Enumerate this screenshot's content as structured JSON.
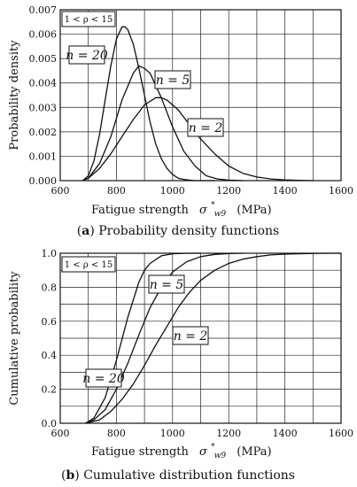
{
  "chart_data": [
    {
      "type": "line",
      "caption_letter": "a",
      "caption_text": " Probability density functions",
      "xlabel": "Fatigue strength",
      "xlabel_symbol": "σ",
      "xlabel_sub": "w9",
      "xlabel_sup": "*",
      "xlabel_unit": "(MPa)",
      "ylabel": "Probability density",
      "xlim": [
        600,
        1600
      ],
      "ylim": [
        0,
        0.007
      ],
      "xticks": [
        "600",
        "800",
        "1000",
        "1200",
        "1400",
        "1600"
      ],
      "yticks": [
        "0.000",
        "0.001",
        "0.002",
        "0.003",
        "0.004",
        "0.005",
        "0.006",
        "0.007"
      ],
      "grid": true,
      "range_note": "1 < ρ < 15",
      "series": [
        {
          "name": "n = 20",
          "x": [
            680,
            700,
            720,
            740,
            760,
            780,
            800,
            820,
            830,
            840,
            860,
            880,
            900,
            920,
            940,
            960,
            980,
            1000,
            1020,
            1040,
            1060,
            1080,
            1100,
            1150
          ],
          "y": [
            0.0,
            0.0002,
            0.0008,
            0.0019,
            0.0033,
            0.0047,
            0.0058,
            0.0063,
            0.0063,
            0.0062,
            0.0056,
            0.0046,
            0.0035,
            0.0024,
            0.0015,
            0.0009,
            0.0005,
            0.00025,
            0.0001,
            5e-05,
            2e-05,
            0.0,
            0.0,
            0.0
          ]
        },
        {
          "name": "n = 5",
          "x": [
            680,
            700,
            740,
            780,
            820,
            860,
            880,
            900,
            920,
            960,
            1000,
            1040,
            1080,
            1120,
            1160,
            1200,
            1250
          ],
          "y": [
            0.0,
            0.0001,
            0.0007,
            0.0018,
            0.0033,
            0.0044,
            0.0047,
            0.0046,
            0.0044,
            0.0034,
            0.0022,
            0.0012,
            0.0006,
            0.0002,
            7e-05,
            2e-05,
            0.0
          ]
        },
        {
          "name": "n = 2",
          "x": [
            680,
            700,
            740,
            780,
            820,
            860,
            900,
            940,
            960,
            980,
            1020,
            1060,
            1100,
            1150,
            1200,
            1250,
            1300,
            1350,
            1400,
            1450,
            1500
          ],
          "y": [
            0.0,
            0.0001,
            0.0005,
            0.0011,
            0.0018,
            0.0025,
            0.0031,
            0.0034,
            0.0034,
            0.0033,
            0.0029,
            0.0023,
            0.0017,
            0.0011,
            0.0006,
            0.0003,
            0.00015,
            7e-05,
            3e-05,
            1e-05,
            0.0
          ]
        }
      ]
    },
    {
      "type": "line",
      "caption_letter": "b",
      "caption_text": " Cumulative distribution functions",
      "xlabel": "Fatigue strength",
      "xlabel_symbol": "σ",
      "xlabel_sub": "w9",
      "xlabel_sup": "*",
      "xlabel_unit": "(MPa)",
      "ylabel": "Cumulative probability",
      "xlim": [
        600,
        1600
      ],
      "ylim": [
        0,
        1.0
      ],
      "xticks": [
        "600",
        "800",
        "1000",
        "1200",
        "1400",
        "1600"
      ],
      "yticks": [
        "0.0",
        "0.2",
        "0.4",
        "0.6",
        "0.8",
        "1.0"
      ],
      "grid": true,
      "range_note": "1 < ρ < 15",
      "series": [
        {
          "name": "n = 20",
          "x": [
            690,
            720,
            760,
            800,
            840,
            880,
            900,
            920,
            960,
            1000,
            1050,
            1100
          ],
          "y": [
            0.0,
            0.03,
            0.15,
            0.37,
            0.62,
            0.83,
            0.9,
            0.94,
            0.985,
            0.997,
            1.0,
            1.0
          ]
        },
        {
          "name": "n = 5",
          "x": [
            690,
            720,
            760,
            800,
            840,
            880,
            920,
            960,
            1000,
            1050,
            1100,
            1150,
            1200,
            1250
          ],
          "y": [
            0.0,
            0.02,
            0.08,
            0.2,
            0.35,
            0.52,
            0.68,
            0.8,
            0.89,
            0.95,
            0.98,
            0.993,
            0.998,
            1.0
          ]
        },
        {
          "name": "n = 2",
          "x": [
            690,
            740,
            780,
            820,
            860,
            900,
            940,
            980,
            1020,
            1060,
            1100,
            1150,
            1200,
            1250,
            1300,
            1350,
            1400,
            1450,
            1500,
            1550,
            1600
          ],
          "y": [
            0.0,
            0.02,
            0.07,
            0.14,
            0.23,
            0.34,
            0.46,
            0.57,
            0.68,
            0.77,
            0.84,
            0.9,
            0.94,
            0.965,
            0.98,
            0.99,
            0.995,
            0.997,
            0.999,
            1.0,
            1.0
          ]
        }
      ]
    }
  ],
  "labels": [
    {
      "chart": 0,
      "series": 0,
      "text": "n = 20"
    },
    {
      "chart": 0,
      "series": 1,
      "text": "n = 5"
    },
    {
      "chart": 0,
      "series": 2,
      "text": "n = 2"
    },
    {
      "chart": 1,
      "series": 0,
      "text": "n = 20"
    },
    {
      "chart": 1,
      "series": 1,
      "text": "n = 5"
    },
    {
      "chart": 1,
      "series": 2,
      "text": "n = 2"
    }
  ]
}
